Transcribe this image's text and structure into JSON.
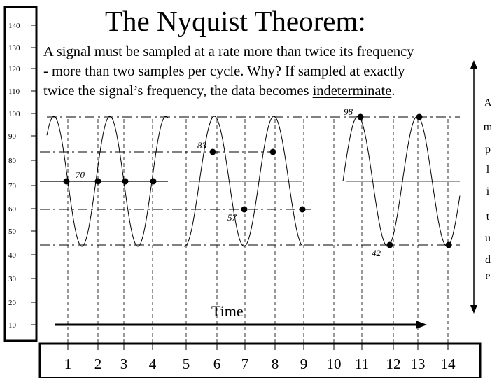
{
  "slide": {
    "title": "The Nyquist Theorem:",
    "body_lines": [
      "A signal must be sampled at a rate more than twice its frequency",
      "- more than two samples per cycle.  Why? If sampled at exactly",
      "twice the signal’s frequency, the data becomes "
    ],
    "body_emphasis": "indeterminate",
    "body_tail": "."
  },
  "diagram": {
    "amplitude_ticks": [
      "140",
      "130",
      "120",
      "110",
      "100",
      "90",
      "80",
      "70",
      "60",
      "50",
      "40",
      "30",
      "20",
      "10"
    ],
    "amplitude_axis_label": [
      "A",
      "m",
      "p",
      "l",
      "i",
      "t",
      "u",
      "d",
      "e"
    ],
    "time_label": "Time",
    "time_ticks": [
      "1",
      "2",
      "3",
      "4",
      "5",
      "6",
      "7",
      "8",
      "9",
      "10",
      "11",
      "12",
      "13",
      "14"
    ],
    "sample_labels": {
      "s70": "70",
      "s83": "83",
      "s57": "57",
      "s98": "98",
      "s42": "42"
    },
    "colors": {
      "ink": "#000000",
      "axis_bar_fill": "#ffffff"
    }
  }
}
